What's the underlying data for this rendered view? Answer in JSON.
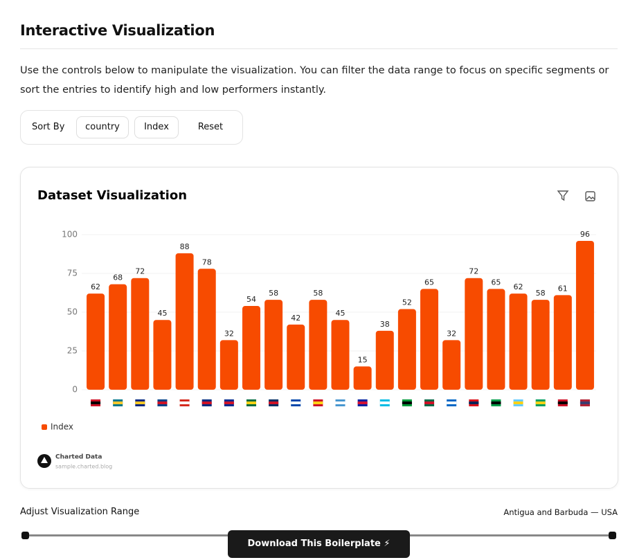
{
  "header": {
    "title": "Interactive Visualization",
    "description": "Use the controls below to manipulate the visualization. You can filter the data range to focus on specific segments or sort the entries to identify high and low performers instantly."
  },
  "controls": {
    "label": "Sort By",
    "buttons": [
      "country",
      "Index",
      "Reset"
    ]
  },
  "chart_data": {
    "type": "bar",
    "title": "Dataset Visualization",
    "categories": [
      null,
      null,
      null,
      null,
      null,
      null,
      null,
      null,
      null,
      null,
      null,
      null,
      null,
      null,
      null,
      null,
      null,
      null,
      null,
      null,
      null,
      null,
      null
    ],
    "series": [
      {
        "name": "Index",
        "color": "#f74b00",
        "values": [
          62,
          68,
          72,
          45,
          88,
          78,
          32,
          54,
          58,
          42,
          58,
          45,
          15,
          38,
          52,
          65,
          32,
          72,
          65,
          62,
          58,
          61,
          96
        ]
      }
    ],
    "ylim": [
      0,
      100
    ],
    "yticks": [
      0,
      25,
      50,
      75,
      100
    ],
    "grid": true,
    "legend": "bottom-left"
  },
  "brand": {
    "name": "Charted Data",
    "url": "sample.charted.blog"
  },
  "range": {
    "label": "Adjust Visualization Range",
    "value": "Antigua and Barbuda — USA"
  },
  "download": "Download This Boilerplate ⚡"
}
